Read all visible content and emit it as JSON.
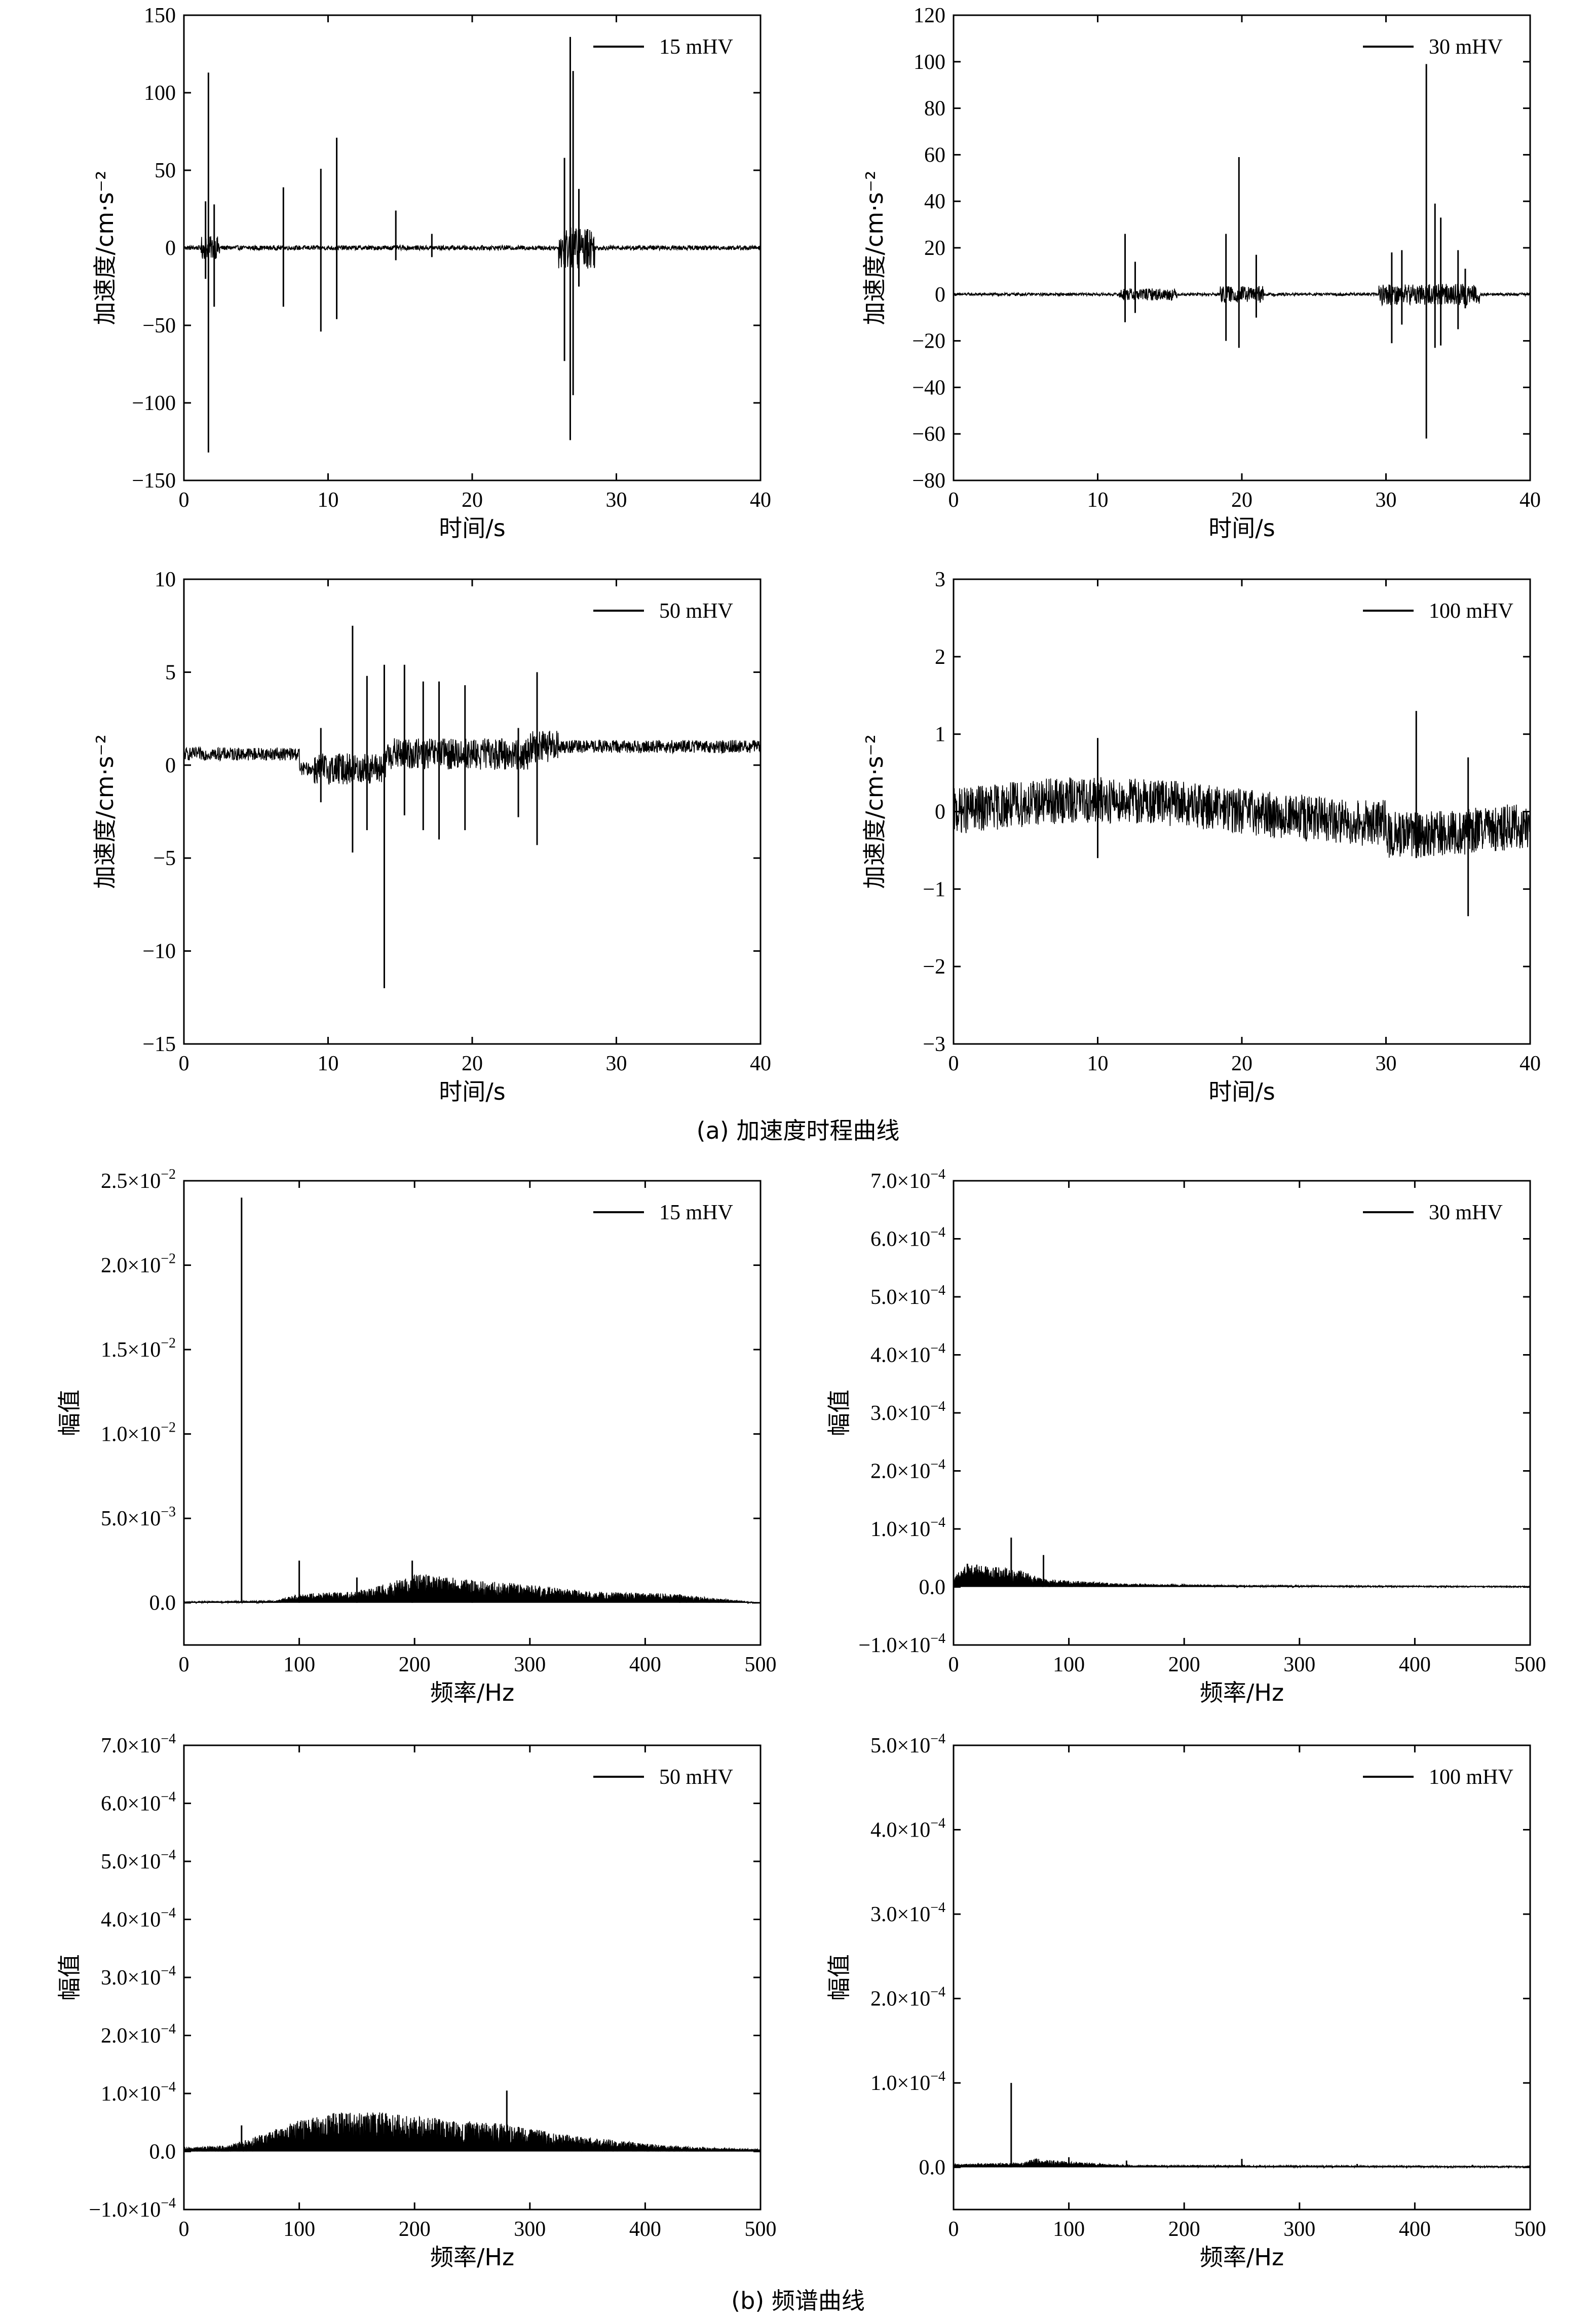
{
  "captions": {
    "a": "(a) 加速度时程曲线",
    "b": "(b) 频谱曲线"
  },
  "chart_data": [
    {
      "id": "a1",
      "type": "line",
      "group": "time",
      "series_name": "15 mHV",
      "xlabel": "时间/s",
      "ylabel": "加速度/cm·s⁻²",
      "xlim": [
        0,
        40
      ],
      "ylim": [
        -150,
        150
      ],
      "xticks": [
        0,
        10,
        20,
        30,
        40
      ],
      "yticks": [
        -150,
        -100,
        -50,
        0,
        50,
        100,
        150
      ],
      "ytick_labels": [
        "−150",
        "−100",
        "−50",
        "0",
        "50",
        "100",
        "150"
      ],
      "noise": {
        "base": 1.5,
        "bursts": [
          [
            26.0,
            28.5,
            12
          ],
          [
            1.2,
            2.5,
            6
          ]
        ]
      },
      "spikes": [
        [
          1.7,
          113,
          -132
        ],
        [
          1.5,
          30,
          -20
        ],
        [
          2.1,
          28,
          -38
        ],
        [
          6.9,
          39,
          -38
        ],
        [
          9.5,
          51,
          -54
        ],
        [
          10.6,
          71,
          -46
        ],
        [
          14.7,
          24,
          -8
        ],
        [
          17.2,
          9,
          -6
        ],
        [
          26.4,
          58,
          -73
        ],
        [
          26.8,
          136,
          -124
        ],
        [
          27.0,
          114,
          -95
        ],
        [
          27.4,
          38,
          -25
        ],
        [
          28.0,
          12,
          -10
        ]
      ]
    },
    {
      "id": "a2",
      "type": "line",
      "group": "time",
      "series_name": "30 mHV",
      "xlabel": "时间/s",
      "ylabel": "加速度/cm·s⁻²",
      "xlim": [
        0,
        40
      ],
      "ylim": [
        -80,
        120
      ],
      "xticks": [
        0,
        10,
        20,
        30,
        40
      ],
      "yticks": [
        -80,
        -60,
        -40,
        -20,
        0,
        20,
        40,
        60,
        80,
        100,
        120
      ],
      "ytick_labels": [
        "−80",
        "−60",
        "−40",
        "−20",
        "0",
        "20",
        "40",
        "60",
        "80",
        "100",
        "120"
      ],
      "noise": {
        "base": 0.6,
        "bursts": [
          [
            11.5,
            15.5,
            2
          ],
          [
            18.5,
            21.5,
            3
          ],
          [
            29.5,
            36.5,
            4
          ]
        ]
      },
      "spikes": [
        [
          11.9,
          26,
          -12
        ],
        [
          12.6,
          14,
          -8
        ],
        [
          18.9,
          26,
          -20
        ],
        [
          19.8,
          59,
          -23
        ],
        [
          21.0,
          17,
          -10
        ],
        [
          30.4,
          18,
          -21
        ],
        [
          31.1,
          19,
          -13
        ],
        [
          32.8,
          99,
          -62
        ],
        [
          33.4,
          39,
          -23
        ],
        [
          33.8,
          33,
          -22
        ],
        [
          35.0,
          19,
          -15
        ],
        [
          35.5,
          11,
          -6
        ]
      ]
    },
    {
      "id": "a3",
      "type": "line",
      "group": "time",
      "series_name": "50 mHV",
      "xlabel": "时间/s",
      "ylabel": "加速度/cm·s⁻²",
      "xlim": [
        0,
        40
      ],
      "ylim": [
        -15,
        10
      ],
      "xticks": [
        0,
        10,
        20,
        30,
        40
      ],
      "yticks": [
        -15,
        -10,
        -5,
        0,
        5,
        10
      ],
      "ytick_labels": [
        "−15",
        "−10",
        "−5",
        "0",
        "5",
        "10"
      ],
      "noise": {
        "base": 0.35,
        "bursts": [
          [
            9.0,
            26.0,
            0.5
          ]
        ]
      },
      "spikes": [
        [
          9.5,
          2,
          -2
        ],
        [
          11.7,
          7.5,
          -4.7
        ],
        [
          12.7,
          4.8,
          -3.5
        ],
        [
          13.9,
          5.4,
          -12
        ],
        [
          15.3,
          5.4,
          -2.7
        ],
        [
          16.6,
          4.5,
          -3.5
        ],
        [
          17.7,
          4.5,
          -4.0
        ],
        [
          19.5,
          4.3,
          -3.5
        ],
        [
          23.2,
          2.0,
          -2.8
        ],
        [
          24.5,
          5.0,
          -4.3
        ]
      ]
    },
    {
      "id": "a4",
      "type": "line",
      "group": "time",
      "series_name": "100 mHV",
      "xlabel": "时间/s",
      "ylabel": "加速度/cm·s⁻²",
      "xlim": [
        0,
        40
      ],
      "ylim": [
        -3,
        3
      ],
      "xticks": [
        0,
        10,
        20,
        30,
        40
      ],
      "yticks": [
        -3,
        -2,
        -1,
        0,
        1,
        2,
        3
      ],
      "ytick_labels": [
        "−3",
        "−2",
        "−1",
        "0",
        "1",
        "2",
        "3"
      ],
      "noise": {
        "base": 0.3,
        "bursts": []
      },
      "spikes": [
        [
          32.1,
          1.3,
          -0.6
        ],
        [
          35.7,
          0.7,
          -1.35
        ],
        [
          10.0,
          0.95,
          -0.6
        ]
      ]
    },
    {
      "id": "b1",
      "type": "line",
      "group": "spectrum",
      "series_name": "15 mHV",
      "xlabel": "频率/Hz",
      "ylabel": "幅值",
      "xlim": [
        0,
        500
      ],
      "ylim": [
        -0.0025,
        0.025
      ],
      "xticks": [
        0,
        100,
        200,
        300,
        400,
        500
      ],
      "yticks": [
        0,
        0.005,
        0.01,
        0.015,
        0.02,
        0.025
      ],
      "ytick_labels": [
        {
          "m": "0.0",
          "e": ""
        },
        {
          "m": "5.0×10",
          "e": "−3"
        },
        {
          "m": "1.0×10",
          "e": "−2"
        },
        {
          "m": "1.5×10",
          "e": "−2"
        },
        {
          "m": "2.0×10",
          "e": "−2"
        },
        {
          "m": "2.5×10",
          "e": "−2"
        }
      ],
      "envelope": [
        [
          0,
          5e-05
        ],
        [
          80,
          0.0001
        ],
        [
          100,
          0.0004
        ],
        [
          150,
          0.0005
        ],
        [
          180,
          0.0009
        ],
        [
          200,
          0.0013
        ],
        [
          250,
          0.001
        ],
        [
          300,
          0.0008
        ],
        [
          350,
          0.0005
        ],
        [
          420,
          0.0004
        ],
        [
          480,
          0.0001
        ],
        [
          500,
          0.0
        ]
      ],
      "spikes": [
        [
          50,
          0.024
        ],
        [
          100,
          0.0025
        ],
        [
          150,
          0.0015
        ],
        [
          198,
          0.0025
        ],
        [
          250,
          0.0013
        ],
        [
          430,
          0.0005
        ]
      ]
    },
    {
      "id": "b2",
      "type": "line",
      "group": "spectrum",
      "series_name": "30 mHV",
      "xlabel": "频率/Hz",
      "ylabel": "幅值",
      "xlim": [
        0,
        500
      ],
      "ylim": [
        -0.0001,
        0.0007
      ],
      "xticks": [
        0,
        100,
        200,
        300,
        400,
        500
      ],
      "yticks": [
        -0.0001,
        0,
        0.0001,
        0.0002,
        0.0003,
        0.0004,
        0.0005,
        0.0006,
        0.0007
      ],
      "ytick_labels": [
        {
          "m": "−1.0×10",
          "e": "−4"
        },
        {
          "m": "0.0",
          "e": ""
        },
        {
          "m": "1.0×10",
          "e": "−4"
        },
        {
          "m": "2.0×10",
          "e": "−4"
        },
        {
          "m": "3.0×10",
          "e": "−4"
        },
        {
          "m": "4.0×10",
          "e": "−4"
        },
        {
          "m": "5.0×10",
          "e": "−4"
        },
        {
          "m": "6.0×10",
          "e": "−4"
        },
        {
          "m": "7.0×10",
          "e": "−4"
        }
      ],
      "envelope": [
        [
          0,
          1e-05
        ],
        [
          10,
          3e-05
        ],
        [
          50,
          2.5e-05
        ],
        [
          80,
          1e-05
        ],
        [
          150,
          4e-06
        ],
        [
          250,
          2e-06
        ],
        [
          500,
          1e-06
        ]
      ],
      "spikes": [
        [
          12,
          4e-05
        ],
        [
          30,
          3e-05
        ],
        [
          50,
          8.5e-05
        ],
        [
          78,
          5.5e-05
        ],
        [
          100,
          8e-06
        ]
      ]
    },
    {
      "id": "b3",
      "type": "line",
      "group": "spectrum",
      "series_name": "50 mHV",
      "xlabel": "频率/Hz",
      "ylabel": "幅值",
      "xlim": [
        0,
        500
      ],
      "ylim": [
        -0.0001,
        0.0007
      ],
      "xticks": [
        0,
        100,
        200,
        300,
        400,
        500
      ],
      "yticks": [
        -0.0001,
        0,
        0.0001,
        0.0002,
        0.0003,
        0.0004,
        0.0005,
        0.0006,
        0.0007
      ],
      "ytick_labels": [
        {
          "m": "−1.0×10",
          "e": "−4"
        },
        {
          "m": "0.0",
          "e": ""
        },
        {
          "m": "1.0×10",
          "e": "−4"
        },
        {
          "m": "2.0×10",
          "e": "−4"
        },
        {
          "m": "3.0×10",
          "e": "−4"
        },
        {
          "m": "4.0×10",
          "e": "−4"
        },
        {
          "m": "5.0×10",
          "e": "−4"
        },
        {
          "m": "6.0×10",
          "e": "−4"
        },
        {
          "m": "7.0×10",
          "e": "−4"
        }
      ],
      "envelope": [
        [
          0,
          5e-06
        ],
        [
          40,
          8e-06
        ],
        [
          60,
          1.8e-05
        ],
        [
          100,
          4e-05
        ],
        [
          130,
          5e-05
        ],
        [
          170,
          5e-05
        ],
        [
          220,
          4.2e-05
        ],
        [
          280,
          3.5e-05
        ],
        [
          330,
          2.2e-05
        ],
        [
          400,
          1e-05
        ],
        [
          450,
          5e-06
        ],
        [
          500,
          3e-06
        ]
      ],
      "spikes": [
        [
          50,
          4.5e-05
        ],
        [
          135,
          6.5e-05
        ],
        [
          175,
          6.5e-05
        ],
        [
          280,
          0.000105
        ],
        [
          450,
          8e-06
        ]
      ]
    },
    {
      "id": "b4",
      "type": "line",
      "group": "spectrum",
      "series_name": "100 mHV",
      "xlabel": "频率/Hz",
      "ylabel": "幅值",
      "xlim": [
        0,
        500
      ],
      "ylim": [
        -5e-05,
        0.0005
      ],
      "xticks": [
        0,
        100,
        200,
        300,
        400,
        500
      ],
      "yticks": [
        0,
        0.0001,
        0.0002,
        0.0003,
        0.0004,
        0.0005
      ],
      "ytick_labels": [
        {
          "m": "0.0",
          "e": ""
        },
        {
          "m": "1.0×10",
          "e": "−4"
        },
        {
          "m": "2.0×10",
          "e": "−4"
        },
        {
          "m": "3.0×10",
          "e": "−4"
        },
        {
          "m": "4.0×10",
          "e": "−4"
        },
        {
          "m": "5.0×10",
          "e": "−4"
        }
      ],
      "envelope": [
        [
          0,
          3e-06
        ],
        [
          60,
          4e-06
        ],
        [
          70,
          8e-06
        ],
        [
          100,
          5e-06
        ],
        [
          150,
          2e-06
        ],
        [
          500,
          1e-06
        ]
      ],
      "spikes": [
        [
          50,
          0.0001
        ],
        [
          100,
          1.2e-05
        ],
        [
          150,
          8e-06
        ],
        [
          250,
          1e-05
        ],
        [
          350,
          4e-06
        ],
        [
          450,
          3e-06
        ]
      ]
    }
  ]
}
